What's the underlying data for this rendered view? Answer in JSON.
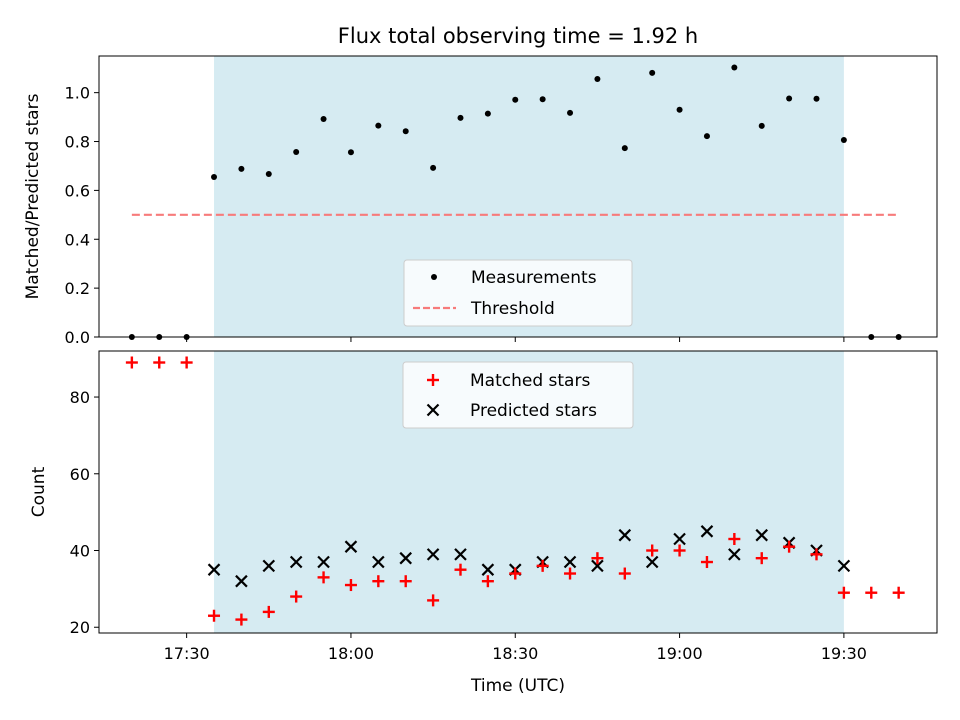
{
  "chart_data": [
    {
      "type": "scatter",
      "title": "Flux total observing time = 1.92 h",
      "ylabel": "Matched/Predicted stars",
      "xlabel": "",
      "xlim": [
        "17:14",
        "19:47"
      ],
      "ylim": [
        0,
        1.15
      ],
      "yticks": [
        "0.0",
        "0.2",
        "0.4",
        "0.6",
        "0.8",
        "1.0"
      ],
      "shaded_range": [
        "17:35",
        "19:30"
      ],
      "legend": {
        "placement": "lower-center",
        "entries": [
          "Measurements",
          "Threshold"
        ]
      },
      "grid": false,
      "series": [
        {
          "name": "Measurements",
          "marker": "dot",
          "color": "#000000",
          "x": [
            "17:20",
            "17:25",
            "17:30",
            "17:35",
            "17:40",
            "17:45",
            "17:50",
            "17:55",
            "18:00",
            "18:05",
            "18:10",
            "18:15",
            "18:20",
            "18:25",
            "18:30",
            "18:35",
            "18:40",
            "18:45",
            "18:50",
            "18:55",
            "19:00",
            "19:05",
            "19:10",
            "19:15",
            "19:20",
            "19:25",
            "19:30",
            "19:35",
            "19:40"
          ],
          "y": [
            0,
            0,
            0,
            0.655,
            0.688,
            0.667,
            0.757,
            0.892,
            0.756,
            0.865,
            0.842,
            0.692,
            0.897,
            0.914,
            0.971,
            0.973,
            0.917,
            1.056,
            0.773,
            1.081,
            0.93,
            0.822,
            1.103,
            0.864,
            0.976,
            0.975,
            0.806,
            0,
            0
          ]
        },
        {
          "name": "Threshold",
          "marker": "dashed-line",
          "color": "#f77b7b",
          "x": [
            "17:20",
            "19:40"
          ],
          "y": [
            0.5,
            0.5
          ]
        }
      ]
    },
    {
      "type": "scatter",
      "title": "",
      "ylabel": "Count",
      "xlabel": "Time (UTC)",
      "xlim": [
        "17:14",
        "19:47"
      ],
      "ylim": [
        18.5,
        92
      ],
      "yticks": [
        "20",
        "40",
        "60",
        "80"
      ],
      "xticks": [
        "17:30",
        "18:00",
        "18:30",
        "19:00",
        "19:30"
      ],
      "shaded_range": [
        "17:35",
        "19:30"
      ],
      "legend": {
        "placement": "upper-center",
        "entries": [
          "Matched stars",
          "Predicted stars"
        ]
      },
      "grid": false,
      "series": [
        {
          "name": "Matched stars",
          "marker": "plus",
          "color": "#ff0000",
          "x": [
            "17:20",
            "17:25",
            "17:30",
            "17:35",
            "17:40",
            "17:45",
            "17:50",
            "17:55",
            "18:00",
            "18:05",
            "18:10",
            "18:15",
            "18:20",
            "18:25",
            "18:30",
            "18:35",
            "18:40",
            "18:45",
            "18:50",
            "18:55",
            "19:00",
            "19:05",
            "19:10",
            "19:15",
            "19:20",
            "19:25",
            "19:30",
            "19:35",
            "19:40"
          ],
          "y": [
            89,
            89,
            89,
            23,
            22,
            24,
            28,
            33,
            31,
            32,
            32,
            27,
            35,
            32,
            34,
            36,
            34,
            38,
            34,
            40,
            40,
            37,
            43,
            38,
            41,
            39,
            29,
            29,
            29
          ]
        },
        {
          "name": "Predicted stars",
          "marker": "x",
          "color": "#000000",
          "x": [
            "17:35",
            "17:40",
            "17:45",
            "17:50",
            "17:55",
            "18:00",
            "18:05",
            "18:10",
            "18:15",
            "18:20",
            "18:25",
            "18:30",
            "18:35",
            "18:40",
            "18:45",
            "18:50",
            "18:55",
            "19:00",
            "19:05",
            "19:10",
            "19:15",
            "19:20",
            "19:25",
            "19:30"
          ],
          "y": [
            35,
            32,
            36,
            37,
            37,
            41,
            37,
            38,
            39,
            39,
            35,
            35,
            37,
            37,
            36,
            44,
            37,
            43,
            45,
            39,
            44,
            42,
            40,
            36
          ]
        }
      ]
    }
  ]
}
